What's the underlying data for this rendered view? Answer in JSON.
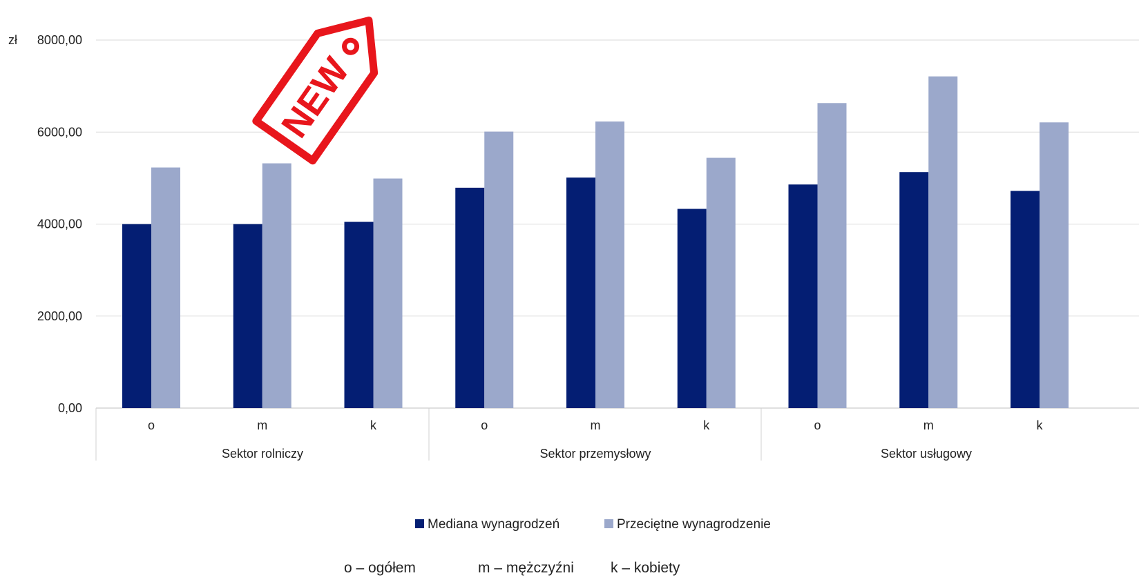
{
  "chart_data": {
    "type": "bar",
    "unit": "zł",
    "groups": [
      "Sektor rolniczy",
      "Sektor przemysłowy",
      "Sektor usługowy"
    ],
    "categories": [
      "o",
      "m",
      "k",
      "o",
      "m",
      "k",
      "o",
      "m",
      "k"
    ],
    "series": [
      {
        "name": "Mediana wynagrodzeń",
        "color": "#041e73",
        "values": [
          4000,
          4000,
          4050,
          4790,
          5010,
          4330,
          4860,
          5130,
          4720
        ]
      },
      {
        "name": "Przeciętne wynagrodzenie",
        "color": "#9ba8cb",
        "values": [
          5230,
          5320,
          4990,
          6010,
          6230,
          5440,
          6630,
          7210,
          6210
        ]
      }
    ],
    "y_ticks": [
      "0,00",
      "2000,00",
      "4000,00",
      "6000,00",
      "8000,00"
    ],
    "ylim": [
      0,
      8000
    ],
    "grid": true,
    "legend_position": "bottom",
    "note": [
      "o – ogółem",
      "m – mężczyźni",
      "k – kobiety"
    ],
    "stamp": {
      "text": "NEW",
      "color": "#e8161c"
    }
  }
}
